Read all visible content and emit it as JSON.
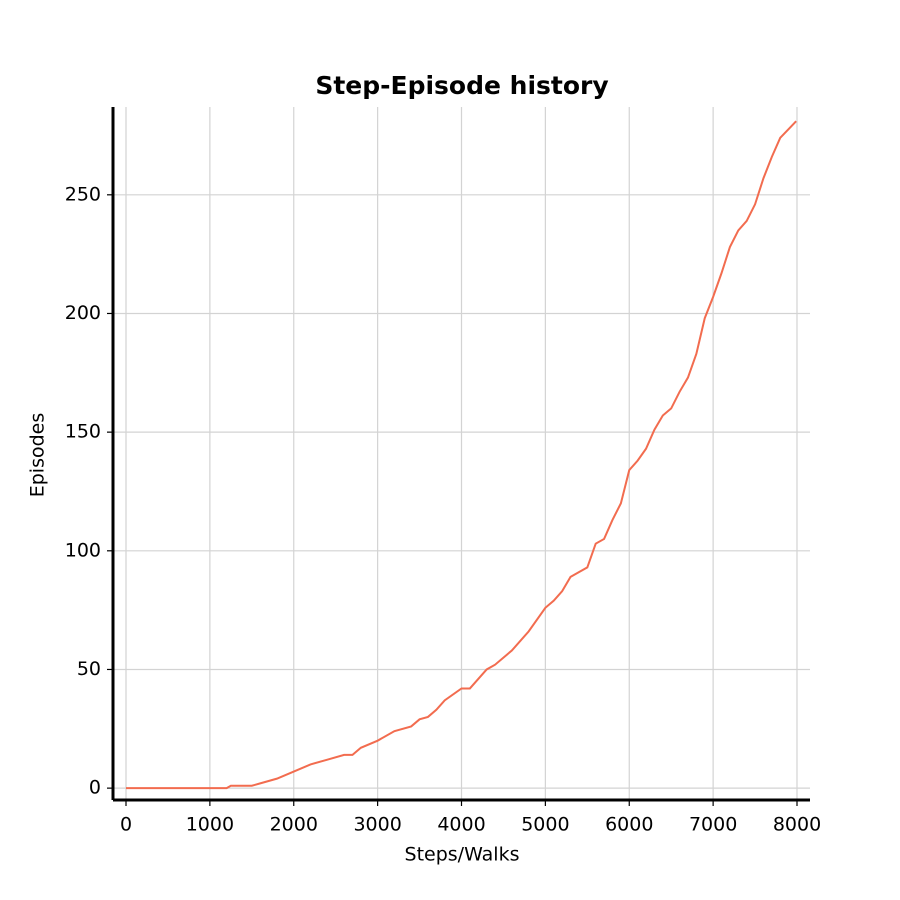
{
  "chart_data": {
    "type": "line",
    "title": "Step-Episode history",
    "xlabel": "Steps/Walks",
    "ylabel": "Episodes",
    "x": [
      0,
      1200,
      1250,
      1500,
      1600,
      1800,
      2000,
      2200,
      2400,
      2600,
      2700,
      2800,
      3000,
      3200,
      3400,
      3500,
      3600,
      3700,
      3800,
      4000,
      4100,
      4200,
      4300,
      4400,
      4600,
      4800,
      5000,
      5100,
      5200,
      5300,
      5400,
      5500,
      5600,
      5700,
      5800,
      5900,
      6000,
      6100,
      6200,
      6300,
      6400,
      6500,
      6600,
      6700,
      6800,
      6900,
      7000,
      7100,
      7200,
      7300,
      7400,
      7500,
      7600,
      7700,
      7800,
      7990
    ],
    "series": [
      {
        "color": "#f26c4f",
        "values": [
          0,
          0,
          1,
          1,
          2,
          4,
          7,
          10,
          12,
          14,
          14,
          17,
          20,
          24,
          26,
          29,
          30,
          33,
          37,
          42,
          42,
          46,
          50,
          52,
          58,
          66,
          76,
          79,
          83,
          89,
          91,
          93,
          103,
          105,
          113,
          120,
          134,
          138,
          143,
          151,
          157,
          160,
          167,
          173,
          183,
          198,
          207,
          217,
          228,
          235,
          239,
          246,
          257,
          266,
          274,
          281
        ]
      }
    ],
    "xlim": [
      -155,
      8155
    ],
    "ylim": [
      -5,
      287
    ],
    "xticks": [
      0,
      1000,
      2000,
      3000,
      4000,
      5000,
      6000,
      7000,
      8000
    ],
    "yticks": [
      0,
      50,
      100,
      150,
      200,
      250
    ],
    "grid": true
  }
}
